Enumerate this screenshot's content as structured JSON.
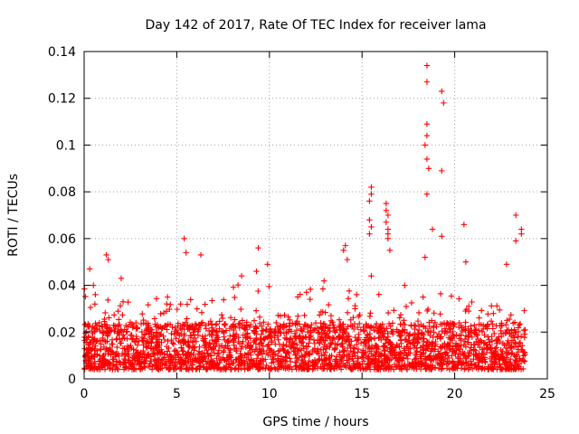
{
  "chart_data": {
    "type": "scatter",
    "title": "Day 142 of 2017, Rate Of TEC Index for receiver lama",
    "xlabel": "GPS time / hours",
    "ylabel": "ROTI / TECUs",
    "xlim": [
      0,
      25
    ],
    "ylim": [
      0,
      0.14
    ],
    "xticks": [
      0,
      5,
      10,
      15,
      20,
      25
    ],
    "xtick_labels": [
      "0",
      "5",
      "10",
      "15",
      "20",
      "25"
    ],
    "yticks": [
      0,
      0.02,
      0.04,
      0.06,
      0.08,
      0.1,
      0.12,
      0.14
    ],
    "ytick_labels": [
      "0",
      "0.02",
      "0.04",
      "0.06",
      "0.08",
      "0.1",
      "0.12",
      "0.14"
    ],
    "grid": true,
    "marker": "+",
    "color": "#ff0000",
    "series": [
      {
        "name": "ROTI",
        "baseline_range": [
          0.004,
          0.024
        ],
        "x_range": [
          0,
          23.8
        ],
        "notable_points": [
          {
            "x": 18.5,
            "y": 0.134
          },
          {
            "x": 18.5,
            "y": 0.127
          },
          {
            "x": 19.3,
            "y": 0.123
          },
          {
            "x": 19.4,
            "y": 0.118
          },
          {
            "x": 18.5,
            "y": 0.109
          },
          {
            "x": 18.5,
            "y": 0.104
          },
          {
            "x": 18.4,
            "y": 0.1
          },
          {
            "x": 18.5,
            "y": 0.094
          },
          {
            "x": 18.6,
            "y": 0.09
          },
          {
            "x": 19.3,
            "y": 0.089
          },
          {
            "x": 15.5,
            "y": 0.082
          },
          {
            "x": 15.5,
            "y": 0.079
          },
          {
            "x": 18.5,
            "y": 0.079
          },
          {
            "x": 15.4,
            "y": 0.076
          },
          {
            "x": 16.3,
            "y": 0.075
          },
          {
            "x": 16.3,
            "y": 0.072
          },
          {
            "x": 16.4,
            "y": 0.07
          },
          {
            "x": 23.3,
            "y": 0.07
          },
          {
            "x": 15.4,
            "y": 0.068
          },
          {
            "x": 16.3,
            "y": 0.067
          },
          {
            "x": 20.5,
            "y": 0.066
          },
          {
            "x": 15.5,
            "y": 0.065
          },
          {
            "x": 16.4,
            "y": 0.064
          },
          {
            "x": 18.8,
            "y": 0.064
          },
          {
            "x": 23.6,
            "y": 0.064
          },
          {
            "x": 15.4,
            "y": 0.062
          },
          {
            "x": 16.4,
            "y": 0.062
          },
          {
            "x": 19.3,
            "y": 0.061
          },
          {
            "x": 23.6,
            "y": 0.062
          },
          {
            "x": 5.4,
            "y": 0.06
          },
          {
            "x": 16.4,
            "y": 0.06
          },
          {
            "x": 23.3,
            "y": 0.059
          },
          {
            "x": 14.1,
            "y": 0.057
          },
          {
            "x": 9.4,
            "y": 0.056
          },
          {
            "x": 14.0,
            "y": 0.055
          },
          {
            "x": 16.5,
            "y": 0.055
          },
          {
            "x": 5.5,
            "y": 0.054
          },
          {
            "x": 1.2,
            "y": 0.053
          },
          {
            "x": 6.3,
            "y": 0.053
          },
          {
            "x": 18.4,
            "y": 0.052
          },
          {
            "x": 1.3,
            "y": 0.051
          },
          {
            "x": 14.2,
            "y": 0.051
          },
          {
            "x": 20.6,
            "y": 0.05
          },
          {
            "x": 22.8,
            "y": 0.049
          },
          {
            "x": 9.9,
            "y": 0.049
          },
          {
            "x": 0.3,
            "y": 0.047
          },
          {
            "x": 9.3,
            "y": 0.046
          },
          {
            "x": 15.5,
            "y": 0.044
          },
          {
            "x": 8.5,
            "y": 0.044
          },
          {
            "x": 2.0,
            "y": 0.043
          },
          {
            "x": 0.5,
            "y": 0.04
          },
          {
            "x": 12.0,
            "y": 0.037
          },
          {
            "x": 4.5,
            "y": 0.035
          }
        ]
      }
    ]
  }
}
